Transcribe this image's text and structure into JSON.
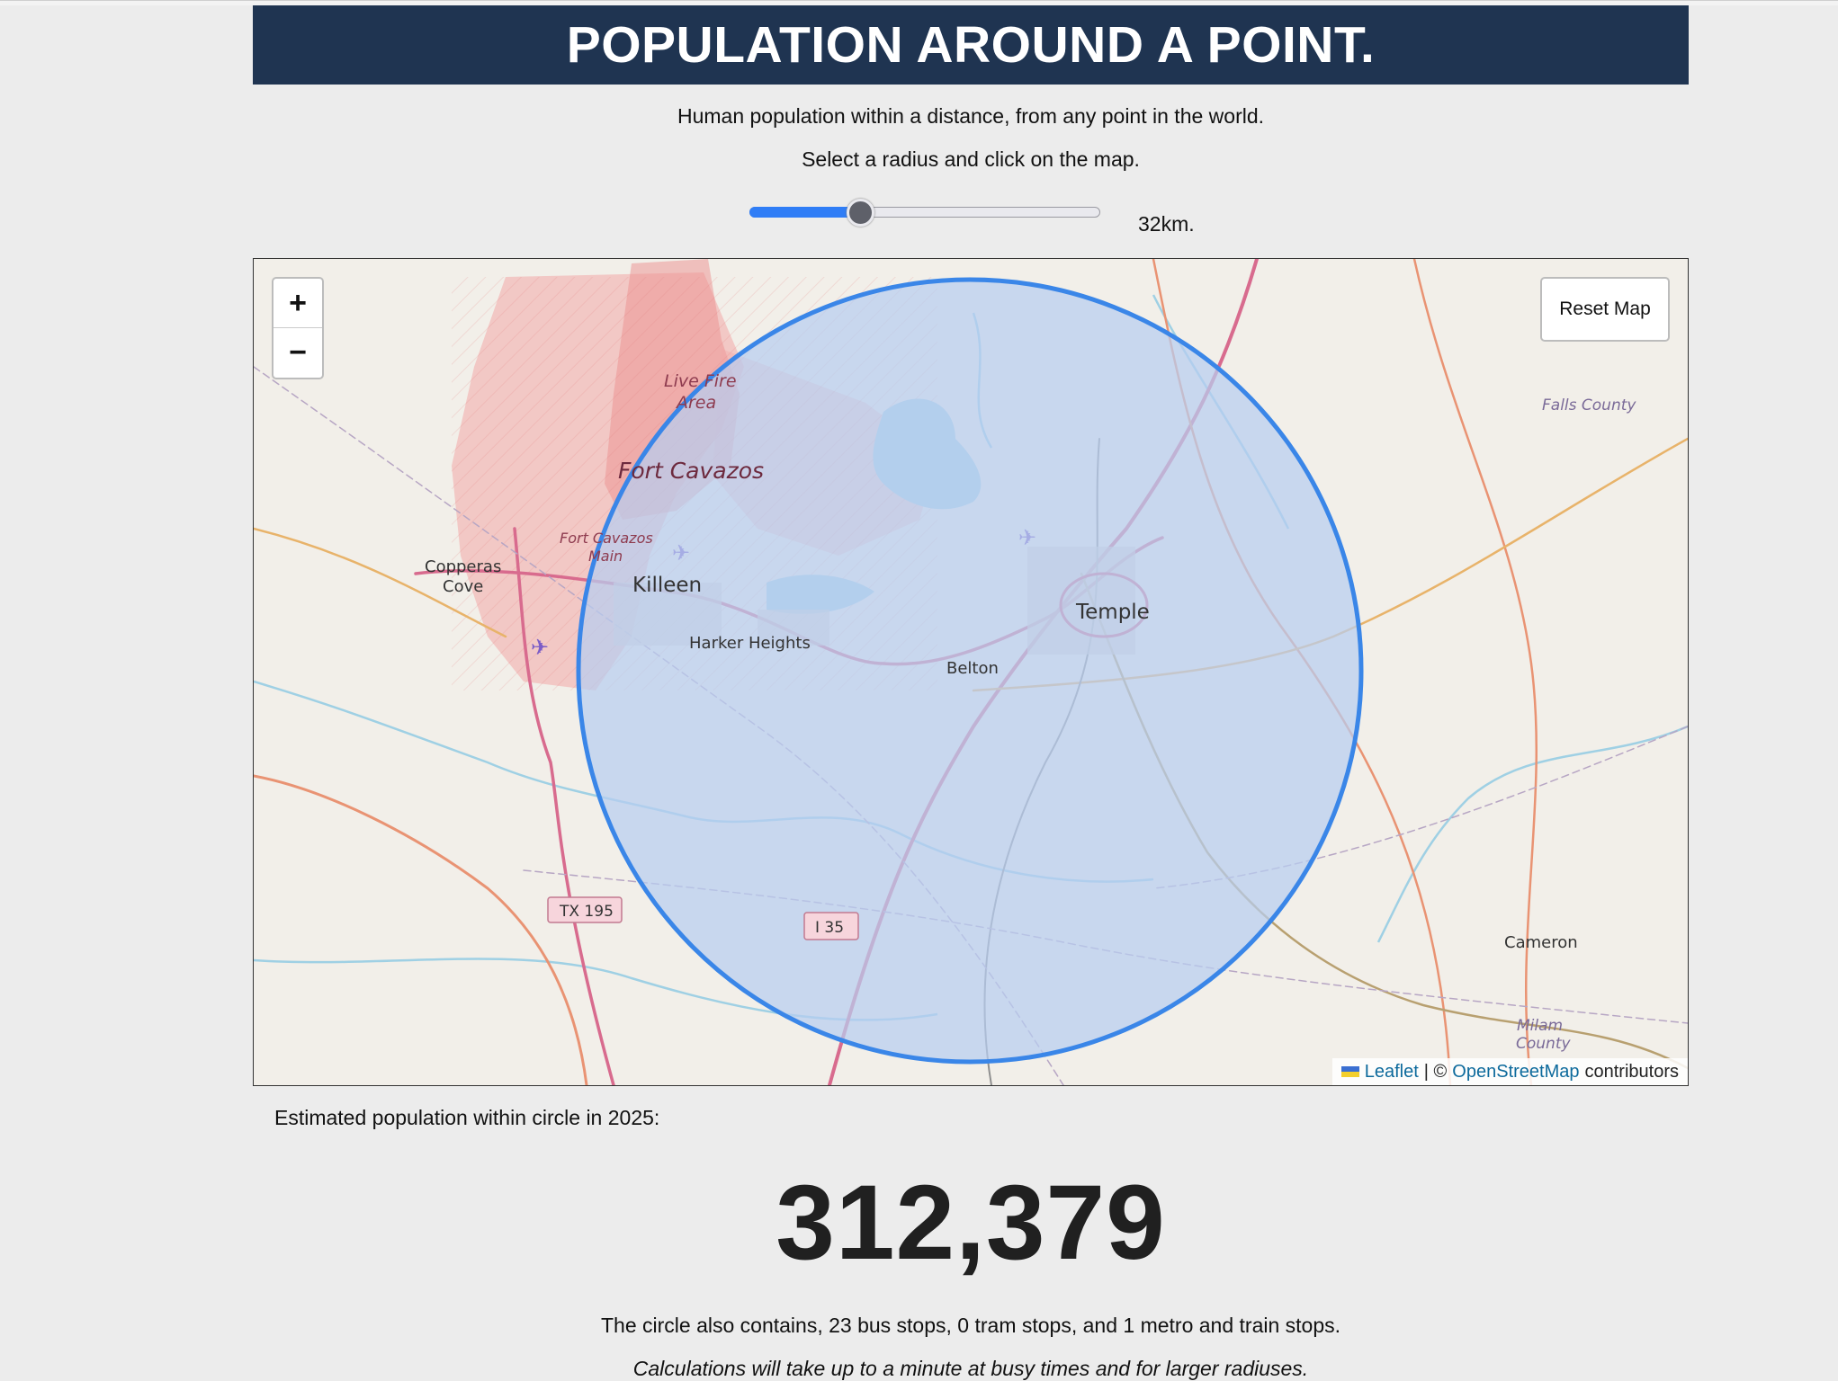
{
  "header": {
    "title": "POPULATION AROUND A POINT."
  },
  "intro": {
    "line1": "Human population within a distance, from any point in the world.",
    "line2": "Select a radius and click on the map."
  },
  "radius": {
    "value_km": 32,
    "fraction": 0.32,
    "label": "32km."
  },
  "map": {
    "zoom_in_label": "+",
    "zoom_out_label": "−",
    "reset_label": "Reset Map",
    "attribution": {
      "leaflet": "Leaflet",
      "separator": "| ©",
      "osm": "OpenStreetMap",
      "contributors": "contributors"
    },
    "places": {
      "live_fire_1": "Live Fire",
      "live_fire_2": "Area",
      "fort_cavazos": "Fort Cavazos",
      "fort_cavazos_main_1": "Fort Cavazos",
      "fort_cavazos_main_2": "Main",
      "copperas_1": "Copperas",
      "copperas_2": "Cove",
      "killeen": "Killeen",
      "harker_heights": "Harker Heights",
      "belton": "Belton",
      "temple": "Temple",
      "falls_county": "Falls County",
      "cameron": "Cameron",
      "milam_1": "Milam",
      "milam_2": "County",
      "tx195": "TX 195",
      "i35": "I 35"
    },
    "colors": {
      "circle_fill": "#b7cdf0",
      "circle_stroke": "#3a86e8",
      "restricted": "#f2a7a7"
    }
  },
  "result": {
    "label": "Estimated population within circle in 2025:",
    "population": "312,379",
    "stops": "The circle also contains, 23 bus stops, 0 tram stops, and 1 metro and train stops.",
    "note": "Calculations will take up to a minute at busy times and for larger radiuses."
  }
}
